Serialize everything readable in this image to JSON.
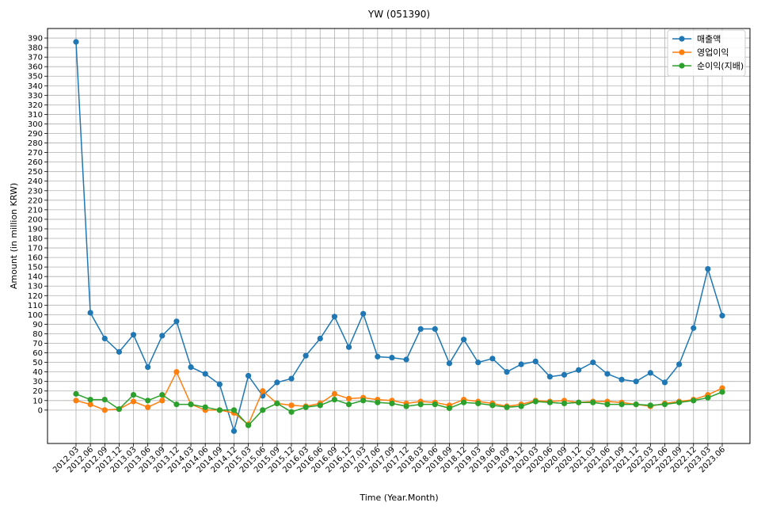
{
  "chart_data": {
    "type": "line",
    "title": "YW (051390)",
    "xlabel": "Time (Year.Month)",
    "ylabel": "Amount (in million KRW)",
    "ylim": [
      -35,
      400
    ],
    "yticks": [
      0,
      10,
      20,
      30,
      40,
      50,
      60,
      70,
      80,
      90,
      100,
      110,
      120,
      130,
      140,
      150,
      160,
      170,
      180,
      190,
      200,
      210,
      220,
      230,
      240,
      250,
      260,
      270,
      280,
      290,
      300,
      310,
      320,
      330,
      340,
      350,
      360,
      370,
      380,
      390
    ],
    "grid": true,
    "legend_position": "top-right",
    "categories": [
      "2012.03",
      "2012.06",
      "2012.09",
      "2012.12",
      "2013.03",
      "2013.06",
      "2013.09",
      "2013.12",
      "2014.03",
      "2014.06",
      "2014.09",
      "2014.12",
      "2015.03",
      "2015.06",
      "2015.09",
      "2015.12",
      "2016.03",
      "2016.06",
      "2016.09",
      "2016.12",
      "2017.03",
      "2017.06",
      "2017.09",
      "2017.12",
      "2018.03",
      "2018.06",
      "2018.09",
      "2018.12",
      "2019.03",
      "2019.06",
      "2019.09",
      "2019.12",
      "2020.03",
      "2020.06",
      "2020.09",
      "2020.12",
      "2021.03",
      "2021.06",
      "2021.09",
      "2021.12",
      "2022.03",
      "2022.06",
      "2022.09",
      "2022.12",
      "2023.03",
      "2023.06"
    ],
    "series": [
      {
        "name": "매출액",
        "color": "#1f77b4",
        "values": [
          386,
          102,
          75,
          61,
          79,
          45,
          78,
          93,
          45,
          38,
          27,
          -22,
          36,
          15,
          29,
          33,
          57,
          75,
          98,
          66,
          101,
          56,
          55,
          53,
          85,
          85,
          49,
          74,
          50,
          54,
          40,
          48,
          51,
          35,
          37,
          42,
          50,
          38,
          32,
          30,
          39,
          29,
          48,
          86,
          148,
          99
        ]
      },
      {
        "name": "영업이익",
        "color": "#ff7f0e",
        "values": [
          10,
          6,
          0,
          1,
          9,
          3,
          10,
          40,
          6,
          0,
          0,
          -3,
          -15,
          20,
          7,
          5,
          4,
          7,
          17,
          12,
          13,
          11,
          10,
          7,
          9,
          8,
          5,
          11,
          9,
          7,
          4,
          6,
          10,
          9,
          10,
          8,
          9,
          9,
          8,
          6,
          4,
          7,
          9,
          11,
          16,
          23
        ]
      },
      {
        "name": "순이익(지배)",
        "color": "#2ca02c",
        "values": [
          17,
          11,
          11,
          1,
          16,
          10,
          16,
          6,
          6,
          3,
          0,
          0,
          -16,
          0,
          7,
          -2,
          3,
          5,
          11,
          6,
          10,
          8,
          7,
          4,
          6,
          6,
          2,
          8,
          7,
          5,
          3,
          4,
          9,
          8,
          7,
          8,
          8,
          6,
          6,
          6,
          5,
          6,
          8,
          10,
          13,
          19
        ]
      }
    ]
  }
}
